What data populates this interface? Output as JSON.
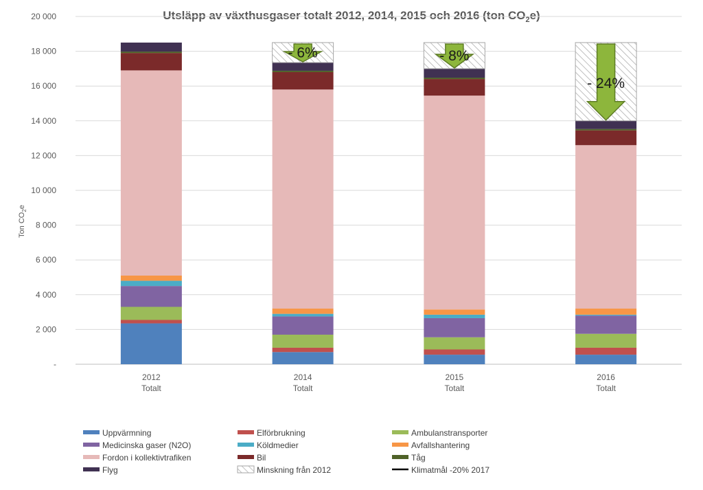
{
  "chart_data": {
    "type": "bar",
    "stacked": true,
    "title": "Utsläpp av växthusgaser totalt 2012, 2014, 2015 och 2016 (ton CO2e)",
    "title_main": "Utsläpp av växthusgaser totalt 2012, 2014, 2015 och 2016 (ton CO",
    "title_sub": "2",
    "title_end": "e)",
    "ylabel": "Ton CO2e",
    "ylabel_main": "Ton CO",
    "ylabel_sub": "2",
    "ylabel_end": "e",
    "ylim": [
      0,
      20000
    ],
    "yticks": [
      {
        "value": 0,
        "label": "-"
      },
      {
        "value": 2000,
        "label": "2 000"
      },
      {
        "value": 4000,
        "label": "4 000"
      },
      {
        "value": 6000,
        "label": "6 000"
      },
      {
        "value": 8000,
        "label": "8 000"
      },
      {
        "value": 10000,
        "label": "10 000"
      },
      {
        "value": 12000,
        "label": "12 000"
      },
      {
        "value": 14000,
        "label": "14 000"
      },
      {
        "value": 16000,
        "label": "16 000"
      },
      {
        "value": 18000,
        "label": "18 000"
      },
      {
        "value": 20000,
        "label": "20 000"
      }
    ],
    "categories": [
      {
        "line1": "2012",
        "line2": "Totalt"
      },
      {
        "line1": "2014",
        "line2": "Totalt"
      },
      {
        "line1": "2015",
        "line2": "Totalt"
      },
      {
        "line1": "2016",
        "line2": "Totalt"
      }
    ],
    "grid": true,
    "legend_position": "bottom",
    "series": [
      {
        "name": "Uppvärmning",
        "color": "#4f81bd",
        "values": [
          2350,
          700,
          550,
          550
        ]
      },
      {
        "name": "Elförbrukning",
        "color": "#c0504d",
        "values": [
          200,
          250,
          300,
          400
        ]
      },
      {
        "name": "Ambulanstransporter",
        "color": "#9bbb59",
        "values": [
          750,
          750,
          700,
          800
        ]
      },
      {
        "name": "Medicinska gaser (N2O)",
        "color": "#8064a2",
        "values": [
          1200,
          1050,
          1100,
          1050
        ]
      },
      {
        "name": "Köldmedier",
        "color": "#4bacc6",
        "values": [
          300,
          150,
          200,
          50
        ]
      },
      {
        "name": "Avfallshantering",
        "color": "#f79646",
        "values": [
          300,
          300,
          300,
          350
        ]
      },
      {
        "name": "Fordon i kollektivtrafiken",
        "color": "#e6b9b8",
        "values": [
          11800,
          12600,
          12300,
          9400
        ]
      },
      {
        "name": "Bil",
        "color": "#7b2a2a",
        "values": [
          1000,
          1000,
          950,
          850
        ]
      },
      {
        "name": "Tåg",
        "color": "#4f6228",
        "values": [
          80,
          80,
          80,
          80
        ]
      },
      {
        "name": "Flyg",
        "color": "#403152",
        "values": [
          520,
          470,
          520,
          470
        ]
      }
    ],
    "reduction": {
      "name": "Minskning från 2012",
      "top": 18500,
      "labels": [
        "",
        "- 6%",
        "- 8%",
        "- 24%"
      ]
    },
    "target_line": {
      "name": "Klimatmål -20% 2017",
      "color": "#000000"
    }
  }
}
